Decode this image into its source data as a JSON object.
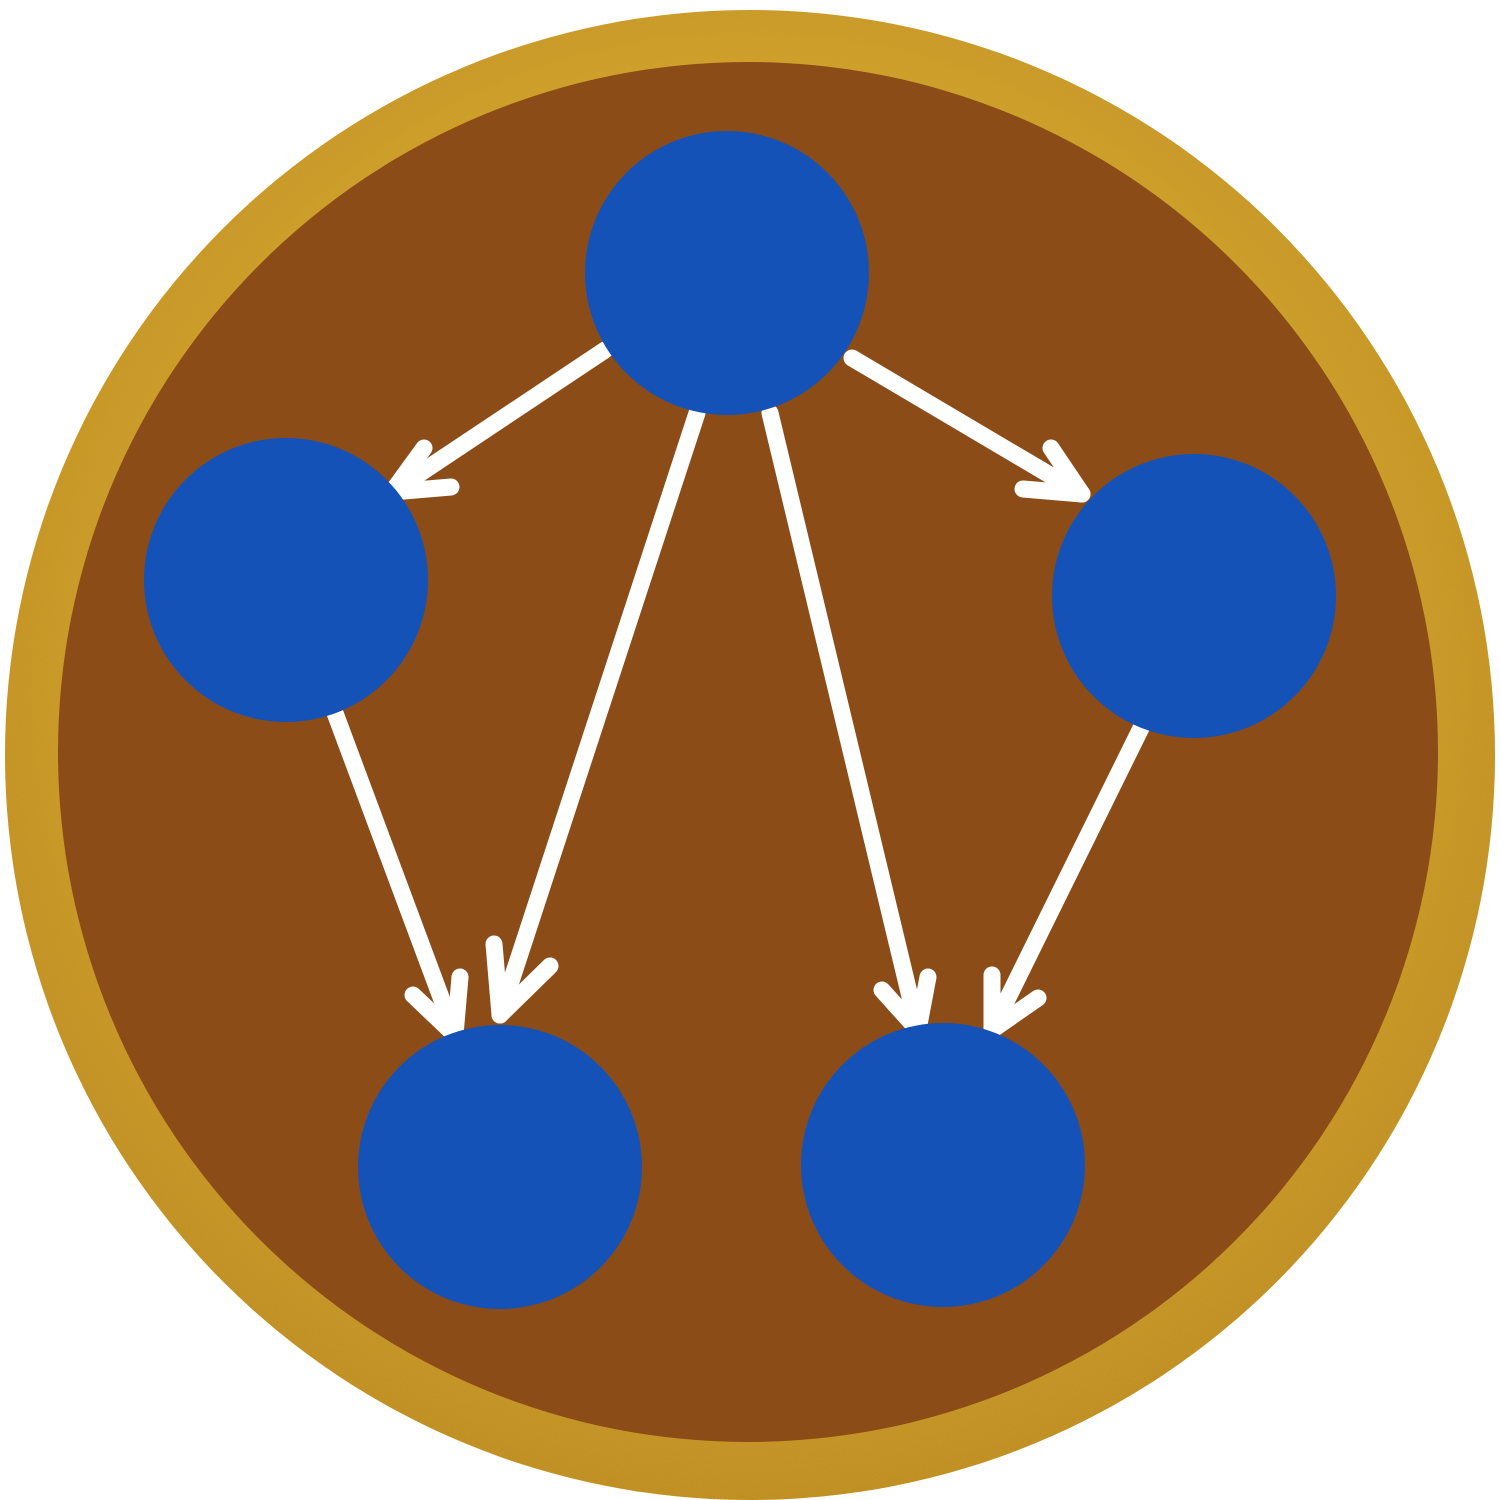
{
  "colors": {
    "background": "#ffffff",
    "gold_light": "#e6c034",
    "gold_mid": "#d4a22a",
    "gold_dark": "#c08a1f",
    "disc_fill": "#8b4c17",
    "node_fill": "#1552b8",
    "arrow": "#ffffff"
  },
  "nodes": [
    {
      "id": "top"
    },
    {
      "id": "left"
    },
    {
      "id": "right"
    },
    {
      "id": "bottom-left"
    },
    {
      "id": "bottom-right"
    }
  ],
  "edges": [
    {
      "from": "top",
      "to": "left"
    },
    {
      "from": "top",
      "to": "right"
    },
    {
      "from": "top",
      "to": "bottom-left"
    },
    {
      "from": "top",
      "to": "bottom-right"
    },
    {
      "from": "left",
      "to": "bottom-left"
    },
    {
      "from": "right",
      "to": "bottom-right"
    }
  ]
}
